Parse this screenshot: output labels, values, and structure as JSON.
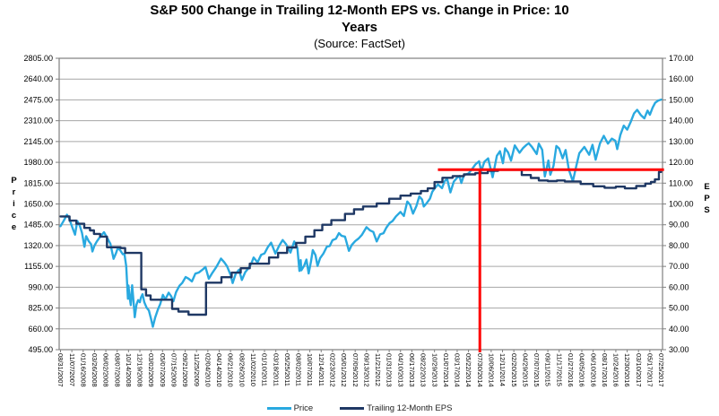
{
  "header": {
    "title_line1": "S&P 500 Change in Trailing 12-Month EPS vs. Change in Price: 10",
    "title_line2": "Years",
    "subtitle": "(Source: FactSet)"
  },
  "chart_data": {
    "type": "line",
    "title": "S&P 500 Change in Trailing 12-Month EPS vs. Change in Price: 10 Years",
    "subtitle": "(Source: FactSet)",
    "grid": true,
    "legend_position": "bottom",
    "colors": {
      "price_line": "#29A9E0",
      "eps_line": "#1F3864",
      "annotation": "#FF0000",
      "gridline": "#A6A6A6",
      "plot_border": "#7F7F7F",
      "text": "#000000"
    },
    "left_axis": {
      "label": "Price",
      "min": 495,
      "max": 2805,
      "tick_step": 165,
      "ticks": [
        "2805.00",
        "2640.00",
        "2475.00",
        "2310.00",
        "2145.00",
        "1980.00",
        "1815.00",
        "1650.00",
        "1485.00",
        "1320.00",
        "1155.00",
        "990.00",
        "825.00",
        "660.00",
        "495.00"
      ]
    },
    "right_axis": {
      "label": "EPS",
      "min": 30,
      "max": 170,
      "tick_step": 10,
      "ticks": [
        "170.00",
        "160.00",
        "150.00",
        "140.00",
        "130.00",
        "120.00",
        "110.00",
        "100.00",
        "90.00",
        "80.00",
        "70.00",
        "60.00",
        "50.00",
        "40.00",
        "30.00"
      ]
    },
    "x_labels": [
      "08/31/2007",
      "11/07/2007",
      "01/16/2008",
      "03/26/2008",
      "06/02/2008",
      "08/07/2008",
      "10/14/2008",
      "12/19/2008",
      "03/02/2009",
      "05/07/2009",
      "07/15/2009",
      "09/21/2009",
      "11/25/2009",
      "02/04/2010",
      "04/14/2010",
      "06/21/2010",
      "08/26/2010",
      "11/02/2010",
      "01/10/2011",
      "03/18/2011",
      "05/25/2011",
      "08/02/2011",
      "10/07/2011",
      "12/14/2011",
      "02/23/2012",
      "05/01/2012",
      "07/09/2012",
      "09/13/2012",
      "11/21/2012",
      "01/31/2013",
      "04/10/2013",
      "06/17/2013",
      "08/22/2013",
      "10/29/2013",
      "01/07/2014",
      "03/17/2014",
      "05/22/2014",
      "07/30/2014",
      "10/06/2014",
      "12/11/2014",
      "02/20/2015",
      "04/29/2015",
      "07/07/2015",
      "09/11/2015",
      "11/17/2015",
      "01/27/2016",
      "04/05/2016",
      "06/10/2016",
      "08/17/2016",
      "10/24/2016",
      "12/30/2016",
      "03/10/2017",
      "05/17/2017",
      "07/25/2017"
    ],
    "series": [
      {
        "name": "Price",
        "axis": "left",
        "style": "line",
        "color": "#29A9E0",
        "points": [
          [
            0,
            1474
          ],
          [
            0.3,
            1520
          ],
          [
            0.57,
            1565
          ],
          [
            0.75,
            1540
          ],
          [
            0.9,
            1500
          ],
          [
            1.1,
            1450
          ],
          [
            1.28,
            1407
          ],
          [
            1.48,
            1515
          ],
          [
            1.7,
            1478
          ],
          [
            1.9,
            1420
          ],
          [
            2.11,
            1310
          ],
          [
            2.26,
            1395
          ],
          [
            2.5,
            1353
          ],
          [
            2.7,
            1331
          ],
          [
            2.82,
            1273
          ],
          [
            3.0,
            1320
          ],
          [
            3.2,
            1353
          ],
          [
            3.5,
            1390
          ],
          [
            3.84,
            1426
          ],
          [
            4.1,
            1385
          ],
          [
            4.4,
            1335
          ],
          [
            4.68,
            1215
          ],
          [
            4.9,
            1260
          ],
          [
            5.07,
            1305
          ],
          [
            5.3,
            1278
          ],
          [
            5.5,
            1251
          ],
          [
            5.64,
            1255
          ],
          [
            5.8,
            1156
          ],
          [
            5.95,
            899
          ],
          [
            6.0,
            1003
          ],
          [
            6.1,
            909
          ],
          [
            6.2,
            848
          ],
          [
            6.32,
            1005
          ],
          [
            6.45,
            873
          ],
          [
            6.55,
            752
          ],
          [
            6.7,
            851
          ],
          [
            6.85,
            888
          ],
          [
            7.0,
            871
          ],
          [
            7.1,
            910
          ],
          [
            7.24,
            934
          ],
          [
            7.4,
            870
          ],
          [
            7.6,
            827
          ],
          [
            7.8,
            805
          ],
          [
            8.0,
            735
          ],
          [
            8.15,
            676
          ],
          [
            8.35,
            750
          ],
          [
            8.6,
            815
          ],
          [
            8.8,
            856
          ],
          [
            9.03,
            929
          ],
          [
            9.25,
            893
          ],
          [
            9.54,
            946
          ],
          [
            9.75,
            920
          ],
          [
            9.96,
            879
          ],
          [
            10.2,
            951
          ],
          [
            10.5,
            1002
          ],
          [
            10.75,
            1025
          ],
          [
            11.04,
            1071
          ],
          [
            11.3,
            1058
          ],
          [
            11.6,
            1036
          ],
          [
            11.9,
            1098
          ],
          [
            12.2,
            1106
          ],
          [
            12.5,
            1127
          ],
          [
            12.79,
            1150
          ],
          [
            13.08,
            1057
          ],
          [
            13.4,
            1104
          ],
          [
            13.75,
            1150
          ],
          [
            14.16,
            1217
          ],
          [
            14.45,
            1187
          ],
          [
            14.7,
            1155
          ],
          [
            15.0,
            1090
          ],
          [
            15.19,
            1023
          ],
          [
            15.45,
            1095
          ],
          [
            15.75,
            1128
          ],
          [
            16.0,
            1047
          ],
          [
            16.3,
            1110
          ],
          [
            16.6,
            1142
          ],
          [
            16.85,
            1180
          ],
          [
            17.04,
            1226
          ],
          [
            17.39,
            1187
          ],
          [
            17.7,
            1247
          ],
          [
            18.0,
            1258
          ],
          [
            18.3,
            1308
          ],
          [
            18.58,
            1343
          ],
          [
            18.96,
            1257
          ],
          [
            19.3,
            1320
          ],
          [
            19.6,
            1364
          ],
          [
            19.9,
            1331
          ],
          [
            20.29,
            1265
          ],
          [
            20.62,
            1353
          ],
          [
            20.9,
            1300
          ],
          [
            21.08,
            1119
          ],
          [
            21.19,
            1205
          ],
          [
            21.25,
            1124
          ],
          [
            21.5,
            1162
          ],
          [
            21.7,
            1209
          ],
          [
            21.9,
            1099
          ],
          [
            22.1,
            1195
          ],
          [
            22.26,
            1285
          ],
          [
            22.5,
            1244
          ],
          [
            22.68,
            1159
          ],
          [
            22.9,
            1219
          ],
          [
            23.2,
            1258
          ],
          [
            23.5,
            1312
          ],
          [
            23.75,
            1316
          ],
          [
            24.0,
            1363
          ],
          [
            24.3,
            1374
          ],
          [
            24.57,
            1419
          ],
          [
            24.8,
            1398
          ],
          [
            25.1,
            1391
          ],
          [
            25.45,
            1278
          ],
          [
            25.7,
            1325
          ],
          [
            26.0,
            1356
          ],
          [
            26.3,
            1376
          ],
          [
            26.6,
            1406
          ],
          [
            27.0,
            1466
          ],
          [
            27.3,
            1441
          ],
          [
            27.6,
            1428
          ],
          [
            27.9,
            1353
          ],
          [
            28.2,
            1409
          ],
          [
            28.5,
            1418
          ],
          [
            28.75,
            1462
          ],
          [
            29.03,
            1498
          ],
          [
            29.3,
            1515
          ],
          [
            29.6,
            1552
          ],
          [
            30.0,
            1587
          ],
          [
            30.3,
            1555
          ],
          [
            30.6,
            1669
          ],
          [
            30.85,
            1643
          ],
          [
            31.1,
            1573
          ],
          [
            31.4,
            1632
          ],
          [
            31.66,
            1710
          ],
          [
            31.9,
            1685
          ],
          [
            32.05,
            1630
          ],
          [
            32.3,
            1655
          ],
          [
            32.6,
            1692
          ],
          [
            32.8,
            1745
          ],
          [
            33.0,
            1772
          ],
          [
            33.3,
            1805
          ],
          [
            33.66,
            1775
          ],
          [
            33.9,
            1831
          ],
          [
            34.12,
            1848
          ],
          [
            34.4,
            1742
          ],
          [
            34.7,
            1828
          ],
          [
            35.0,
            1859
          ],
          [
            35.2,
            1872
          ],
          [
            35.37,
            1816
          ],
          [
            35.6,
            1878
          ],
          [
            36.0,
            1892
          ],
          [
            36.3,
            1925
          ],
          [
            36.6,
            1963
          ],
          [
            36.93,
            1988
          ],
          [
            37.12,
            1910
          ],
          [
            37.4,
            1985
          ],
          [
            37.73,
            2011
          ],
          [
            38.13,
            1862
          ],
          [
            38.5,
            2032
          ],
          [
            38.78,
            2068
          ],
          [
            39.04,
            1973
          ],
          [
            39.23,
            2091
          ],
          [
            39.5,
            2058
          ],
          [
            39.75,
            1994
          ],
          [
            40.08,
            2114
          ],
          [
            40.5,
            2056
          ],
          [
            40.8,
            2092
          ],
          [
            41.1,
            2118
          ],
          [
            41.32,
            2131
          ],
          [
            41.6,
            2102
          ],
          [
            42.02,
            2046
          ],
          [
            42.2,
            2128
          ],
          [
            42.5,
            2079
          ],
          [
            42.73,
            1868
          ],
          [
            43.05,
            1995
          ],
          [
            43.22,
            1882
          ],
          [
            43.5,
            1952
          ],
          [
            43.75,
            2110
          ],
          [
            44.0,
            2090
          ],
          [
            44.31,
            2012
          ],
          [
            44.57,
            2078
          ],
          [
            44.85,
            1922
          ],
          [
            45.21,
            1829
          ],
          [
            45.5,
            1948
          ],
          [
            45.78,
            2052
          ],
          [
            46.22,
            2102
          ],
          [
            46.65,
            2040
          ],
          [
            46.94,
            2119
          ],
          [
            47.22,
            2001
          ],
          [
            47.6,
            2130
          ],
          [
            47.94,
            2190
          ],
          [
            48.3,
            2128
          ],
          [
            48.65,
            2168
          ],
          [
            48.96,
            2151
          ],
          [
            49.12,
            2085
          ],
          [
            49.4,
            2198
          ],
          [
            49.7,
            2271
          ],
          [
            50.0,
            2239
          ],
          [
            50.3,
            2298
          ],
          [
            50.6,
            2368
          ],
          [
            50.88,
            2396
          ],
          [
            51.2,
            2356
          ],
          [
            51.51,
            2329
          ],
          [
            51.8,
            2390
          ],
          [
            52.0,
            2357
          ],
          [
            52.25,
            2415
          ],
          [
            52.48,
            2453
          ],
          [
            52.75,
            2470
          ],
          [
            53,
            2477
          ]
        ]
      },
      {
        "name": "Trailing 12-Month EPS",
        "axis": "right",
        "style": "step",
        "color": "#1F3864",
        "points": [
          [
            0,
            94
          ],
          [
            0.8,
            92
          ],
          [
            1.4,
            90.5
          ],
          [
            2.1,
            88.5
          ],
          [
            2.6,
            87.3
          ],
          [
            2.95,
            85.6
          ],
          [
            3.5,
            84.3
          ],
          [
            4.1,
            79.2
          ],
          [
            5.3,
            78.8
          ],
          [
            5.7,
            76.5
          ],
          [
            7.13,
            59
          ],
          [
            7.55,
            56
          ],
          [
            7.95,
            54
          ],
          [
            9.85,
            49.6
          ],
          [
            10.4,
            48.3
          ],
          [
            11.3,
            46.8
          ],
          [
            12.84,
            62.2
          ],
          [
            14.2,
            64.8
          ],
          [
            15.1,
            67
          ],
          [
            15.9,
            69.1
          ],
          [
            16.7,
            71.3
          ],
          [
            18.4,
            74.3
          ],
          [
            19.2,
            76.5
          ],
          [
            20.0,
            79.1
          ],
          [
            20.8,
            81.3
          ],
          [
            21.6,
            84.3
          ],
          [
            22.4,
            87.4
          ],
          [
            23.1,
            90
          ],
          [
            23.9,
            92.2
          ],
          [
            25.1,
            95.2
          ],
          [
            25.9,
            97.4
          ],
          [
            26.7,
            98.8
          ],
          [
            27.9,
            100.2
          ],
          [
            29.0,
            102.5
          ],
          [
            30.0,
            104.0
          ],
          [
            30.9,
            105.0
          ],
          [
            31.8,
            106.2
          ],
          [
            32.4,
            107.5
          ],
          [
            33.0,
            110.5
          ],
          [
            33.7,
            112.6
          ],
          [
            34.6,
            113.4
          ],
          [
            35.6,
            114.2
          ],
          [
            36.6,
            114.8
          ],
          [
            37.7,
            115.9
          ],
          [
            38.6,
            116.4
          ],
          [
            39.6,
            116.4
          ],
          [
            40.7,
            113.9
          ],
          [
            41.5,
            112.5
          ],
          [
            42.2,
            111.3
          ],
          [
            43.0,
            111.0
          ],
          [
            43.8,
            111.3
          ],
          [
            44.5,
            110.8
          ],
          [
            45.9,
            109.6
          ],
          [
            47.0,
            108.5
          ],
          [
            48.0,
            107.8
          ],
          [
            49.0,
            108.3
          ],
          [
            49.8,
            107.5
          ],
          [
            50.8,
            108.6
          ],
          [
            51.6,
            109.8
          ],
          [
            52.1,
            110.6
          ],
          [
            52.45,
            111.8
          ],
          [
            52.8,
            115.4
          ],
          [
            53,
            115.4
          ]
        ]
      }
    ],
    "annotations": {
      "hline": {
        "color": "#FF0000",
        "eps_value": 116.5,
        "from_index": 33.3,
        "to_index": 53.25
      },
      "vline": {
        "color": "#FF0000",
        "index": 37,
        "at_label": "07/30/2014",
        "from_eps": 116.5,
        "to": "bottom"
      }
    },
    "legend": [
      "Price",
      "Trailing 12-Month EPS"
    ]
  }
}
